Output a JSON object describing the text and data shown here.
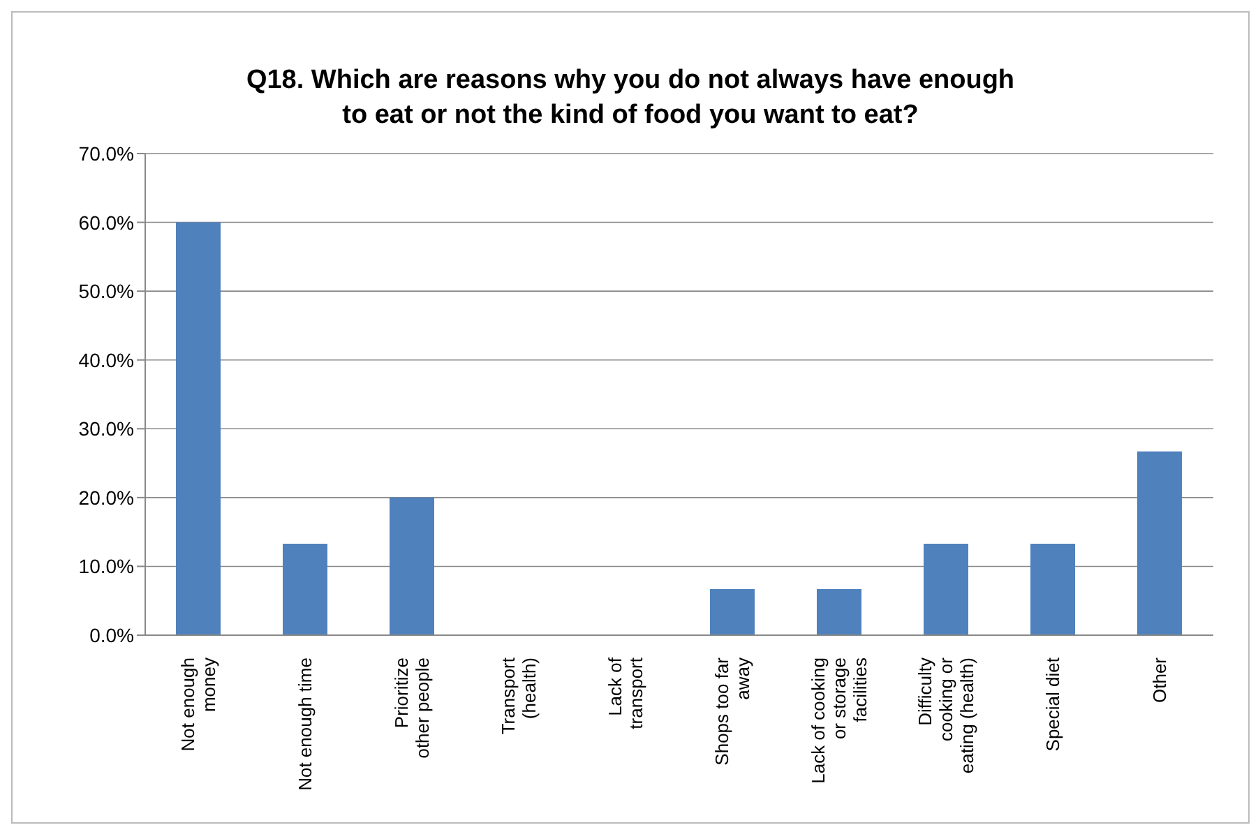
{
  "chart_data": {
    "type": "bar",
    "title": "Q18. Which are reasons why you do not always have enough to eat or not the kind of food you want to eat?",
    "categories": [
      "Not enough money",
      "Not enough time",
      "Prioritize other people",
      "Transport (health)",
      "Lack of transport",
      "Shops too far away",
      "Lack of cooking or storage facilities",
      "Difficulty cooking or eating (health)",
      "Special diet",
      "Other"
    ],
    "values": [
      60,
      13.3,
      20,
      0,
      0,
      6.7,
      6.7,
      13.3,
      13.3,
      26.7
    ],
    "color": "#4f81bd",
    "ylim": [
      0,
      70
    ],
    "yticks": [
      {
        "value": 0,
        "label": "0.0%"
      },
      {
        "value": 10,
        "label": "10.0%"
      },
      {
        "value": 20,
        "label": "20.0%"
      },
      {
        "value": 30,
        "label": "30.0%"
      },
      {
        "value": 40,
        "label": "40.0%"
      },
      {
        "value": 50,
        "label": "50.0%"
      },
      {
        "value": 60,
        "label": "60.0%"
      },
      {
        "value": 70,
        "label": "70.0%"
      }
    ],
    "grid": "y"
  }
}
